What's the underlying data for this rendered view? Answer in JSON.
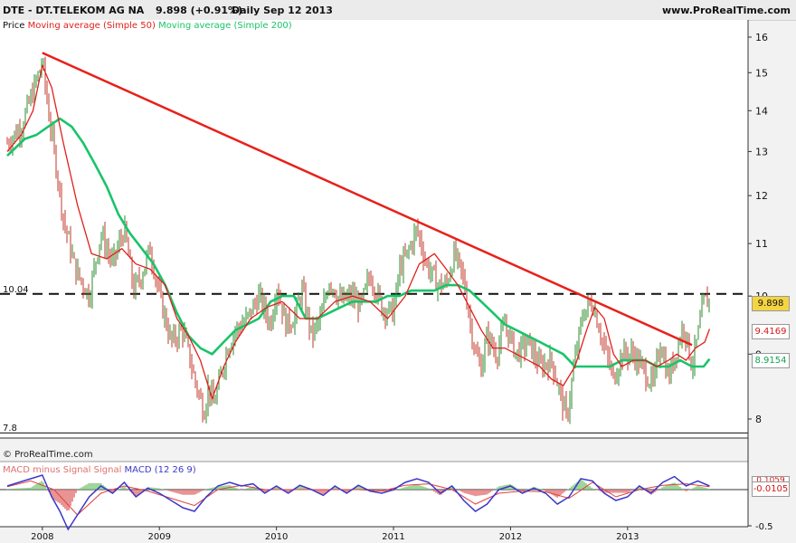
{
  "header": {
    "symbol_name": "DTE - DT.TELEKOM AG NA",
    "price_change": "9.898 (+0.91%)",
    "period_date": "Daily  Sep 12 2013",
    "website": "www.ProRealTime.com"
  },
  "legend": {
    "price": "Price",
    "ma50": "Moving average (Simple 50)",
    "ma200": "Moving average (Simple 200)"
  },
  "watermark": "© ProRealTime.com",
  "macd_legend": {
    "hist_label": "MACD minus Signal Signal",
    "macd_label": "MACD (12 26 9)"
  },
  "levels": {
    "upper": "10.04",
    "lower": "7.8"
  },
  "value_boxes": {
    "price": "9.898",
    "ma50": "9.4169",
    "ma200": "8.9154",
    "macd_top": "0.1059",
    "macd_value": "-0.0105"
  },
  "colors": {
    "price_up": "#2e8b2e",
    "price_down": "#c0392b",
    "ma50": "#e0201b",
    "ma200": "#19c46a",
    "trendline": "#e8201b",
    "macd": "#3a37c9",
    "signal": "#e04040",
    "hist_pos": "#7ec87a",
    "hist_neg": "#e07070"
  },
  "chart_data": [
    {
      "type": "line",
      "title": "DTE - DT.TELEKOM AG NA",
      "yscale": "log",
      "ylim": [
        7.5,
        16.5
      ],
      "y_ticks": [
        "16",
        "15",
        "14",
        "13",
        "12",
        "11",
        "10",
        "9",
        "8"
      ],
      "x_ticks": [
        "2008",
        "2009",
        "2010",
        "2011",
        "2012",
        "2013"
      ],
      "series": [
        {
          "name": "Price",
          "x": [
            2007.7,
            2007.82,
            2007.92,
            2008.0,
            2008.05,
            2008.1,
            2008.18,
            2008.28,
            2008.4,
            2008.5,
            2008.6,
            2008.7,
            2008.78,
            2008.85,
            2008.92,
            2009.0,
            2009.1,
            2009.2,
            2009.3,
            2009.38,
            2009.42,
            2009.46,
            2009.52,
            2009.58,
            2009.65,
            2009.75,
            2009.85,
            2009.95,
            2010.0,
            2010.08,
            2010.15,
            2010.22,
            2010.3,
            2010.38,
            2010.45,
            2010.55,
            2010.65,
            2010.72,
            2010.8,
            2010.9,
            2011.0,
            2011.05,
            2011.12,
            2011.2,
            2011.28,
            2011.38,
            2011.45,
            2011.52,
            2011.6,
            2011.65,
            2011.7,
            2011.75,
            2011.8,
            2011.88,
            2011.95,
            2012.05,
            2012.15,
            2012.25,
            2012.35,
            2012.42,
            2012.48,
            2012.55,
            2012.62,
            2012.7,
            2012.75,
            2012.8,
            2012.88,
            2012.95,
            2013.05,
            2013.15,
            2013.22,
            2013.28,
            2013.35,
            2013.42,
            2013.48,
            2013.55,
            2013.6,
            2013.65,
            2013.7
          ],
          "values": [
            13.2,
            13.6,
            14.5,
            15.3,
            14.0,
            13.0,
            11.5,
            10.5,
            10.0,
            11.2,
            10.6,
            11.3,
            10.1,
            10.4,
            10.9,
            10.0,
            9.2,
            9.4,
            8.6,
            8.1,
            8.5,
            8.2,
            8.6,
            9.1,
            9.4,
            9.6,
            10.0,
            9.5,
            10.2,
            9.5,
            9.6,
            10.1,
            9.3,
            9.6,
            10.3,
            9.9,
            10.0,
            9.8,
            10.4,
            9.8,
            9.7,
            10.5,
            10.8,
            11.3,
            10.6,
            10.2,
            10.2,
            10.8,
            10.3,
            9.6,
            9.0,
            8.8,
            9.3,
            9.0,
            9.5,
            9.0,
            9.2,
            8.8,
            8.9,
            8.4,
            8.0,
            8.9,
            9.7,
            9.9,
            9.5,
            9.1,
            8.6,
            9.0,
            9.0,
            8.7,
            8.5,
            9.2,
            8.6,
            9.1,
            9.5,
            8.8,
            9.3,
            9.9,
            9.9
          ]
        },
        {
          "name": "Moving average (Simple 50)",
          "x": [
            2007.7,
            2007.82,
            2007.92,
            2008.0,
            2008.08,
            2008.18,
            2008.3,
            2008.42,
            2008.55,
            2008.68,
            2008.8,
            2008.92,
            2009.05,
            2009.15,
            2009.25,
            2009.35,
            2009.45,
            2009.55,
            2009.65,
            2009.78,
            2009.92,
            2010.05,
            2010.2,
            2010.35,
            2010.5,
            2010.65,
            2010.8,
            2010.95,
            2011.1,
            2011.22,
            2011.35,
            2011.45,
            2011.55,
            2011.65,
            2011.75,
            2011.85,
            2011.95,
            2012.05,
            2012.15,
            2012.25,
            2012.35,
            2012.45,
            2012.55,
            2012.65,
            2012.72,
            2012.8,
            2012.88,
            2012.95,
            2013.05,
            2013.15,
            2013.25,
            2013.35,
            2013.42,
            2013.5,
            2013.58,
            2013.66,
            2013.7
          ],
          "values": [
            13.0,
            13.4,
            14.0,
            15.2,
            14.6,
            13.2,
            11.8,
            10.8,
            10.7,
            10.9,
            10.6,
            10.5,
            10.2,
            9.6,
            9.3,
            8.9,
            8.3,
            8.8,
            9.2,
            9.6,
            9.8,
            9.9,
            9.6,
            9.6,
            9.9,
            10.0,
            9.9,
            9.6,
            10.0,
            10.6,
            10.8,
            10.5,
            10.2,
            9.8,
            9.4,
            9.1,
            9.1,
            9.0,
            8.9,
            8.8,
            8.6,
            8.5,
            8.8,
            9.4,
            9.8,
            9.6,
            9.0,
            8.8,
            8.9,
            8.9,
            8.8,
            8.9,
            9.0,
            8.9,
            9.1,
            9.2,
            9.42
          ]
        },
        {
          "name": "Moving average (Simple 200)",
          "x": [
            2007.7,
            2007.85,
            2007.95,
            2008.05,
            2008.15,
            2008.25,
            2008.35,
            2008.45,
            2008.55,
            2008.65,
            2008.75,
            2008.85,
            2008.95,
            2009.05,
            2009.15,
            2009.25,
            2009.35,
            2009.45,
            2009.55,
            2009.65,
            2009.75,
            2009.85,
            2009.95,
            2010.05,
            2010.15,
            2010.25,
            2010.35,
            2010.45,
            2010.55,
            2010.65,
            2010.75,
            2010.85,
            2010.95,
            2011.05,
            2011.15,
            2011.25,
            2011.35,
            2011.45,
            2011.55,
            2011.65,
            2011.75,
            2011.85,
            2011.95,
            2012.05,
            2012.15,
            2012.25,
            2012.35,
            2012.45,
            2012.55,
            2012.65,
            2012.75,
            2012.85,
            2012.95,
            2013.05,
            2013.15,
            2013.25,
            2013.35,
            2013.45,
            2013.55,
            2013.65,
            2013.7
          ],
          "values": [
            12.9,
            13.3,
            13.4,
            13.6,
            13.8,
            13.6,
            13.2,
            12.7,
            12.2,
            11.6,
            11.2,
            10.9,
            10.6,
            10.2,
            9.7,
            9.3,
            9.1,
            9.0,
            9.2,
            9.4,
            9.5,
            9.6,
            9.9,
            10.0,
            10.0,
            9.6,
            9.6,
            9.7,
            9.8,
            9.9,
            9.9,
            9.9,
            10.0,
            10.0,
            10.1,
            10.1,
            10.1,
            10.2,
            10.2,
            10.1,
            9.9,
            9.7,
            9.5,
            9.4,
            9.3,
            9.2,
            9.1,
            9.0,
            8.8,
            8.8,
            8.8,
            8.8,
            8.9,
            8.9,
            8.9,
            8.8,
            8.8,
            8.9,
            8.8,
            8.8,
            8.92
          ]
        }
      ],
      "annotations": [
        "10.04",
        "7.8"
      ]
    },
    {
      "type": "line",
      "title": "MACD (12 26 9)",
      "ylim": [
        -0.6,
        0.3
      ],
      "y_ticks": [
        "-0.5"
      ],
      "series": [
        {
          "name": "MACD (12 26 9)",
          "x": [
            2007.7,
            2007.8,
            2007.9,
            2008.0,
            2008.08,
            2008.15,
            2008.22,
            2008.3,
            2008.4,
            2008.5,
            2008.6,
            2008.7,
            2008.8,
            2008.9,
            2009.0,
            2009.1,
            2009.2,
            2009.3,
            2009.4,
            2009.5,
            2009.6,
            2009.7,
            2009.8,
            2009.9,
            2010.0,
            2010.1,
            2010.2,
            2010.3,
            2010.4,
            2010.5,
            2010.6,
            2010.7,
            2010.8,
            2010.9,
            2011.0,
            2011.1,
            2011.2,
            2011.3,
            2011.4,
            2011.5,
            2011.6,
            2011.7,
            2011.8,
            2011.9,
            2012.0,
            2012.1,
            2012.2,
            2012.3,
            2012.4,
            2012.5,
            2012.6,
            2012.7,
            2012.8,
            2012.9,
            2013.0,
            2013.1,
            2013.2,
            2013.3,
            2013.4,
            2013.5,
            2013.6,
            2013.7
          ],
          "values": [
            0.05,
            0.1,
            0.15,
            0.2,
            -0.1,
            -0.3,
            -0.55,
            -0.35,
            -0.1,
            0.05,
            -0.05,
            0.1,
            -0.1,
            0.02,
            -0.05,
            -0.15,
            -0.25,
            -0.3,
            -0.1,
            0.05,
            0.1,
            0.05,
            0.08,
            -0.05,
            0.05,
            -0.05,
            0.06,
            0.0,
            -0.08,
            0.05,
            -0.05,
            0.06,
            -0.02,
            -0.05,
            0.0,
            0.1,
            0.15,
            0.1,
            -0.05,
            0.05,
            -0.15,
            -0.3,
            -0.2,
            0.0,
            0.05,
            -0.05,
            0.02,
            -0.05,
            -0.2,
            -0.1,
            0.15,
            0.12,
            -0.05,
            -0.15,
            -0.1,
            0.05,
            -0.05,
            0.1,
            0.18,
            0.05,
            0.12,
            0.05
          ]
        },
        {
          "name": "Signal",
          "x": [
            2007.7,
            2007.9,
            2008.1,
            2008.3,
            2008.5,
            2008.7,
            2008.9,
            2009.1,
            2009.3,
            2009.5,
            2009.7,
            2009.9,
            2010.1,
            2010.3,
            2010.5,
            2010.7,
            2010.9,
            2011.1,
            2011.3,
            2011.5,
            2011.7,
            2011.9,
            2012.1,
            2012.3,
            2012.5,
            2012.7,
            2012.9,
            2013.1,
            2013.3,
            2013.5,
            2013.7
          ],
          "values": [
            0.04,
            0.12,
            0.0,
            -0.35,
            -0.05,
            0.05,
            -0.02,
            -0.12,
            -0.22,
            0.0,
            0.06,
            0.0,
            0.0,
            0.0,
            0.0,
            0.0,
            -0.02,
            0.06,
            0.08,
            0.0,
            -0.2,
            -0.05,
            -0.02,
            -0.03,
            -0.12,
            0.1,
            -0.1,
            0.0,
            0.06,
            0.08,
            0.04
          ]
        }
      ],
      "value": -0.0105
    }
  ]
}
